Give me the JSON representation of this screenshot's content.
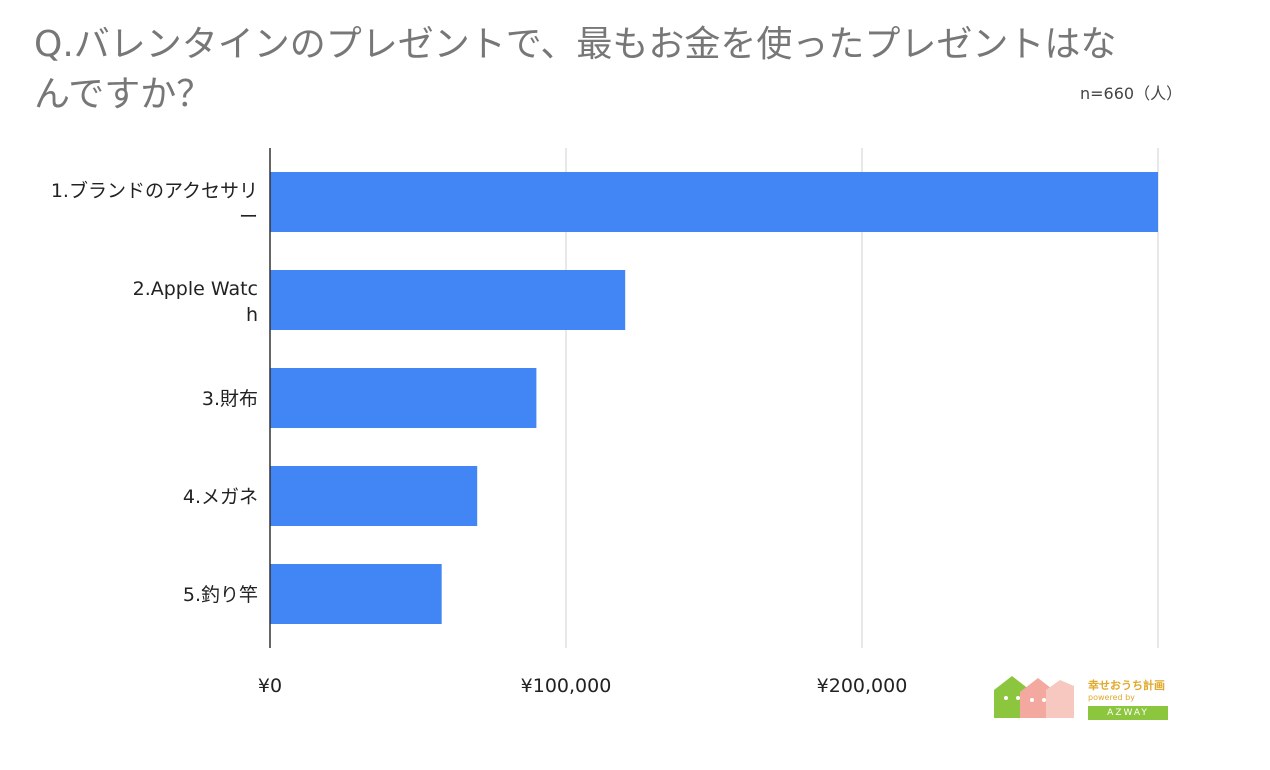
{
  "chart_data": {
    "type": "bar",
    "orientation": "horizontal",
    "title": "Q.バレンタインのプレゼントで、最もお金を使ったプレゼントはなんですか？",
    "note": "n=660（人）",
    "categories": [
      "1.ブランドのアクセサリー",
      "2.Apple Watch",
      "3.財布",
      "4.メガネ",
      "5.釣り竿"
    ],
    "values": [
      300000,
      120000,
      90000,
      70000,
      58000
    ],
    "xlim": [
      0,
      300000
    ],
    "xticks": [
      0,
      100000,
      200000
    ],
    "xtick_labels": [
      "¥0",
      "¥100,000",
      "¥200,000"
    ],
    "grid": true,
    "bar_color": "#4285f4",
    "grid_color": "#d0d0d0"
  },
  "logo": {
    "name": "幸せおうち計画",
    "sub": "powered by",
    "brand": "AZWAY"
  }
}
